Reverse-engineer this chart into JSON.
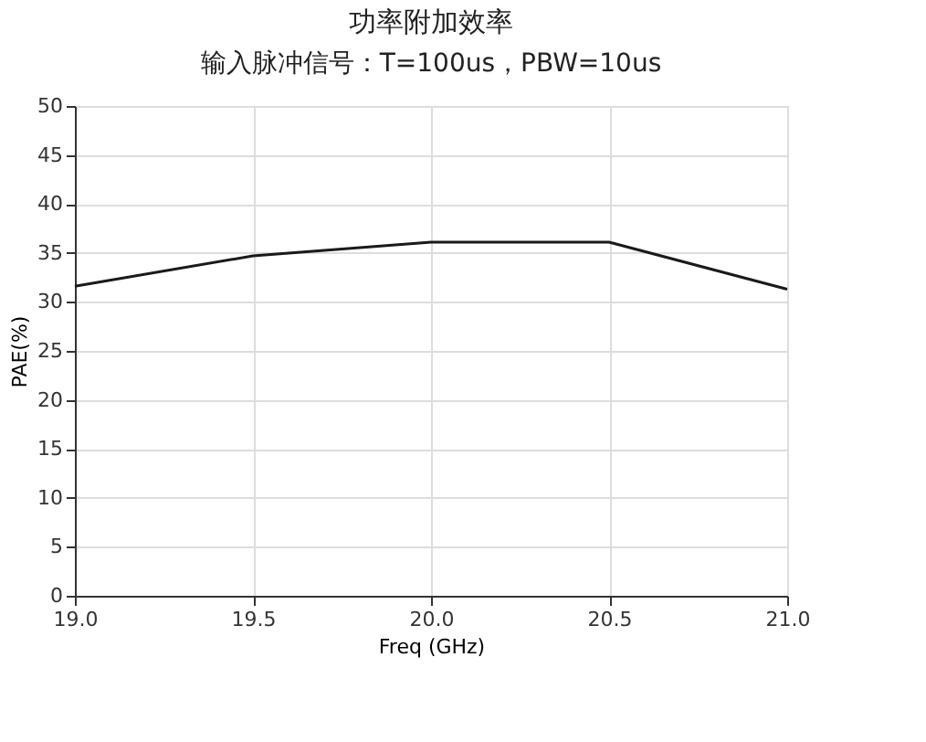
{
  "chart_data": {
    "type": "line",
    "title": "功率附加效率",
    "subtitle": "输入脉冲信号：T=100us，PBW=10us",
    "xlabel": "Freq (GHz)",
    "ylabel": "PAE(%)",
    "x": [
      19.0,
      19.5,
      20.0,
      20.5,
      21.0
    ],
    "series": [
      {
        "color": "#1a1a1a",
        "values": [
          31.6,
          34.7,
          36.1,
          36.1,
          31.3
        ]
      }
    ],
    "xlim": [
      19.0,
      21.0
    ],
    "xticks": [
      {
        "value": 19.0,
        "label": "19.0"
      },
      19.5,
      {
        "value": 20.0,
        "label": "20.0"
      },
      20.5,
      {
        "value": 21.0,
        "label": "21.0"
      }
    ],
    "ylim": [
      0,
      50
    ],
    "yticks": [
      0,
      5,
      10,
      15,
      20,
      25,
      30,
      35,
      40,
      45,
      50
    ],
    "grid": true,
    "marker": "none",
    "line_style": "solid"
  }
}
